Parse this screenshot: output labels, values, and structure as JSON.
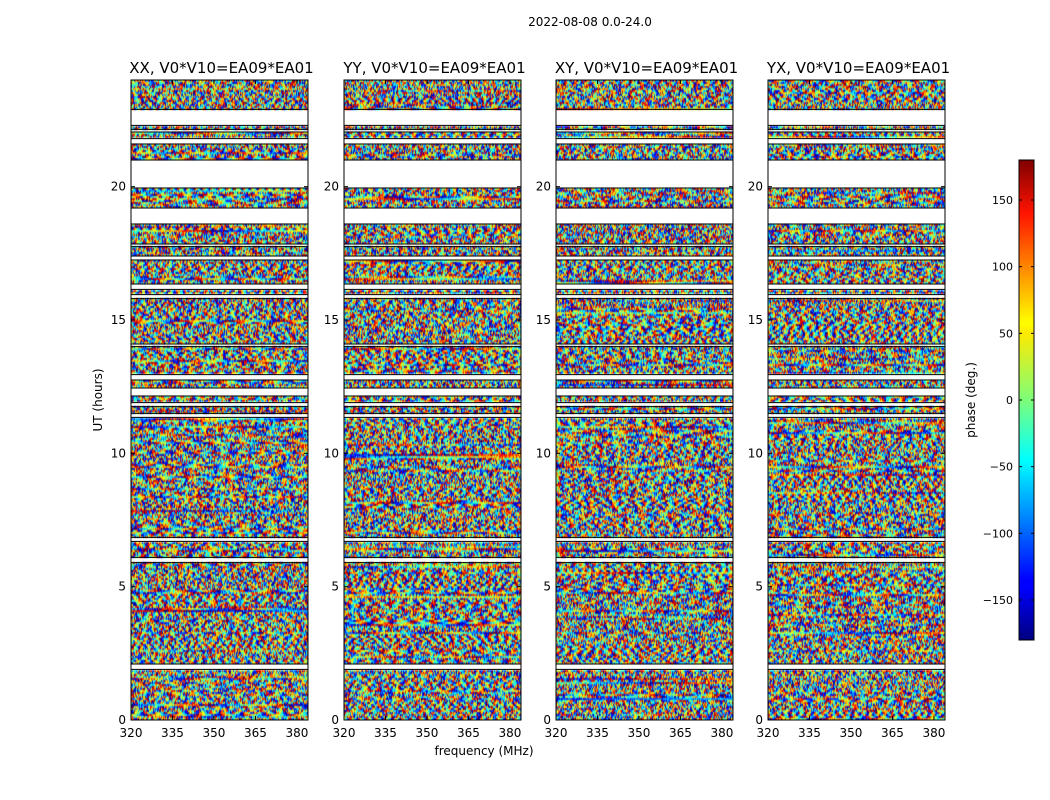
{
  "chart_data": {
    "type": "heatmap",
    "title": "2022-08-08 0.0-24.0",
    "xlabel": "frequency (MHz)",
    "ylabel": "UT (hours)",
    "xlim": [
      320,
      384
    ],
    "ylim": [
      0,
      24
    ],
    "xticks": [
      320,
      335,
      350,
      365,
      380
    ],
    "yticks": [
      0,
      5,
      10,
      15,
      20
    ],
    "colormap": "jet",
    "colorbar": {
      "label": "phase (deg.)",
      "range": [
        -180,
        180
      ],
      "ticks": [
        -150,
        -100,
        -50,
        0,
        50,
        100,
        150
      ],
      "tick_labels": [
        "−150",
        "−100",
        "−50",
        "0",
        "50",
        "100",
        "150"
      ]
    },
    "panels": [
      {
        "title": "XX, V0*V10=EA09*EA01",
        "polarization": "XX"
      },
      {
        "title": "YY, V0*V10=EA09*EA01",
        "polarization": "YY"
      },
      {
        "title": "XY, V0*V10=EA09*EA01",
        "polarization": "XY"
      },
      {
        "title": "YX, V0*V10=EA09*EA01",
        "polarization": "YX"
      }
    ],
    "flagged_time_ranges_hours": [
      [
        1.9,
        2.1
      ],
      [
        5.9,
        6.1
      ],
      [
        6.7,
        6.85
      ],
      [
        11.35,
        11.5
      ],
      [
        11.75,
        11.9
      ],
      [
        12.15,
        12.45
      ],
      [
        12.75,
        12.95
      ],
      [
        14.0,
        14.1
      ],
      [
        15.8,
        15.95
      ],
      [
        16.15,
        16.35
      ],
      [
        17.25,
        17.4
      ],
      [
        17.75,
        17.85
      ],
      [
        18.6,
        19.2
      ],
      [
        19.95,
        21.0
      ],
      [
        21.6,
        21.8
      ],
      [
        22.05,
        22.15
      ],
      [
        22.3,
        22.9
      ]
    ]
  }
}
